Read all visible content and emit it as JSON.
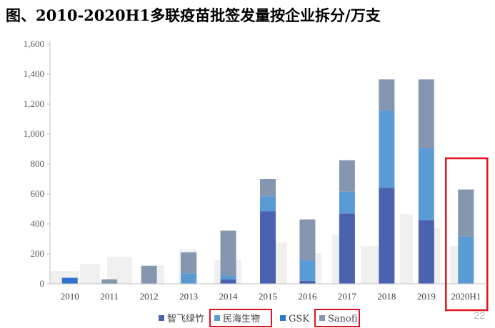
{
  "title": "图、2010-2020H1多联疫苗批签发量按企业拆分/万支",
  "page_number": "22",
  "chart_data": {
    "type": "bar",
    "stacked": true,
    "categories": [
      "2010",
      "2011",
      "2012",
      "2013",
      "2014",
      "2015",
      "2016",
      "2017",
      "2018",
      "2019",
      "2020H1"
    ],
    "series": [
      {
        "name": "智飞绿竹",
        "color": "#4a62b0",
        "values": [
          0,
          0,
          0,
          0,
          30,
          485,
          20,
          470,
          640,
          425,
          0
        ]
      },
      {
        "name": "民海生物",
        "color": "#5b9bd5",
        "values": [
          0,
          0,
          0,
          70,
          25,
          100,
          135,
          145,
          520,
          480,
          315
        ]
      },
      {
        "name": "GSK",
        "color": "#2e75d0",
        "values": [
          40,
          0,
          0,
          0,
          0,
          0,
          0,
          0,
          0,
          0,
          0
        ]
      },
      {
        "name": "Sanofi",
        "color": "#8496b0",
        "values": [
          0,
          30,
          120,
          140,
          300,
          115,
          275,
          210,
          205,
          460,
          315
        ]
      }
    ],
    "yticks": [
      "0",
      "200",
      "400",
      "600",
      "800",
      "1,000",
      "1,200",
      "1,400",
      "1,600"
    ],
    "ylim": [
      0,
      1600
    ],
    "grid": false,
    "legend_position": "bottom",
    "highlighted_legend": [
      "民海生物",
      "Sanofi"
    ],
    "highlighted_category": "2020H1"
  },
  "colors": {
    "highlight_box": "#e0141e",
    "axis": "#c0c0c0",
    "watermark": "#f0f0f0"
  }
}
